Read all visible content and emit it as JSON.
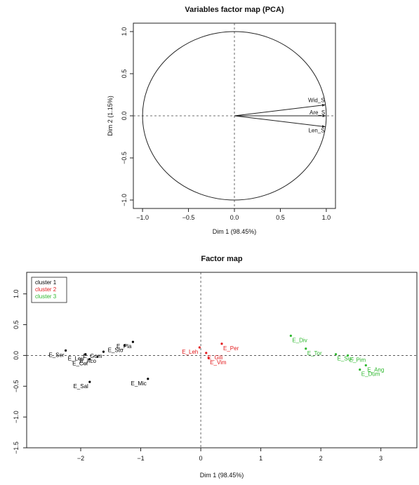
{
  "chart_data": [
    {
      "type": "scatter",
      "variant": "pca-correlation-circle",
      "title": "Variables factor map (PCA)",
      "xlabel": "Dim 1 (98.45%)",
      "ylabel": "Dim 2 (1.15%)",
      "xlim": [
        -1.1,
        1.1
      ],
      "ylim": [
        -1.1,
        1.1
      ],
      "x_ticks": [
        -1.0,
        -0.5,
        0.0,
        0.5,
        1.0
      ],
      "x_tick_labels": [
        "−1.0",
        "−0.5",
        "0.0",
        "0.5",
        "1.0"
      ],
      "y_ticks": [
        -1.0,
        -0.5,
        0.0,
        0.5,
        1.0
      ],
      "y_tick_labels": [
        "−1.0",
        "−0.5",
        "0.0",
        "0.5",
        "1.0"
      ],
      "circle_radius": 1.0,
      "grid": false,
      "reference_lines": "dashed at x=0 and y=0",
      "variables": [
        {
          "name": "Wid_S",
          "x": 0.99,
          "y": 0.13
        },
        {
          "name": "Are_S",
          "x": 0.995,
          "y": 0.0
        },
        {
          "name": "Len_S",
          "x": 0.99,
          "y": -0.13
        }
      ]
    },
    {
      "type": "scatter",
      "title": "Factor map",
      "xlabel": "Dim 1 (98.45%)",
      "ylabel": "",
      "xlim": [
        -2.9,
        3.6
      ],
      "ylim": [
        -1.5,
        1.35
      ],
      "x_ticks": [
        -2,
        -1,
        0,
        1,
        2,
        3
      ],
      "x_tick_labels": [
        "−2",
        "−1",
        "0",
        "1",
        "2",
        "3"
      ],
      "y_ticks": [
        -1.5,
        -1.0,
        -0.5,
        0.0,
        0.5,
        1.0
      ],
      "y_tick_labels": [
        "−1.5",
        "−1.0",
        "−0.5",
        "0.0",
        "0.5",
        "1.0"
      ],
      "grid": false,
      "reference_lines": "dashed at x=0 and y=0",
      "legend": "top-left",
      "series": [
        {
          "name": "cluster 1",
          "color": "#000000",
          "points": [
            {
              "label": "E_Ser",
              "x": -2.25,
              "y": 0.08
            },
            {
              "label": "E_Leu",
              "x": -1.92,
              "y": 0.02
            },
            {
              "label": "E_Cor",
              "x": -1.85,
              "y": -0.06
            },
            {
              "label": "E_Gom",
              "x": -1.62,
              "y": 0.06
            },
            {
              "label": "E_Aco",
              "x": -1.72,
              "y": -0.02
            },
            {
              "label": "E_Pla",
              "x": -1.13,
              "y": 0.22
            },
            {
              "label": "E_Sto",
              "x": -1.27,
              "y": 0.16
            },
            {
              "label": "E_Sal",
              "x": -1.85,
              "y": -0.43
            },
            {
              "label": "E_Mic",
              "x": -0.88,
              "y": -0.38
            }
          ]
        },
        {
          "name": "cluster 2",
          "color": "#e31a1c",
          "points": [
            {
              "label": "E_Per",
              "x": 0.35,
              "y": 0.19
            },
            {
              "label": "E_Leh",
              "x": -0.02,
              "y": 0.13
            },
            {
              "label": "E_Gili",
              "x": 0.09,
              "y": 0.04
            },
            {
              "label": "E_Vim",
              "x": 0.13,
              "y": -0.04
            }
          ]
        },
        {
          "name": "cluster 3",
          "color": "#2eb82e",
          "points": [
            {
              "label": "E_Div",
              "x": 1.5,
              "y": 0.32
            },
            {
              "label": "E_Tor",
              "x": 1.75,
              "y": 0.11
            },
            {
              "label": "E_Suc",
              "x": 2.25,
              "y": 0.02
            },
            {
              "label": "E_Pim",
              "x": 2.45,
              "y": 0.0
            },
            {
              "label": "E_Ang",
              "x": 2.75,
              "y": -0.16
            },
            {
              "label": "E_Dum",
              "x": 2.65,
              "y": -0.23
            }
          ]
        }
      ]
    }
  ]
}
